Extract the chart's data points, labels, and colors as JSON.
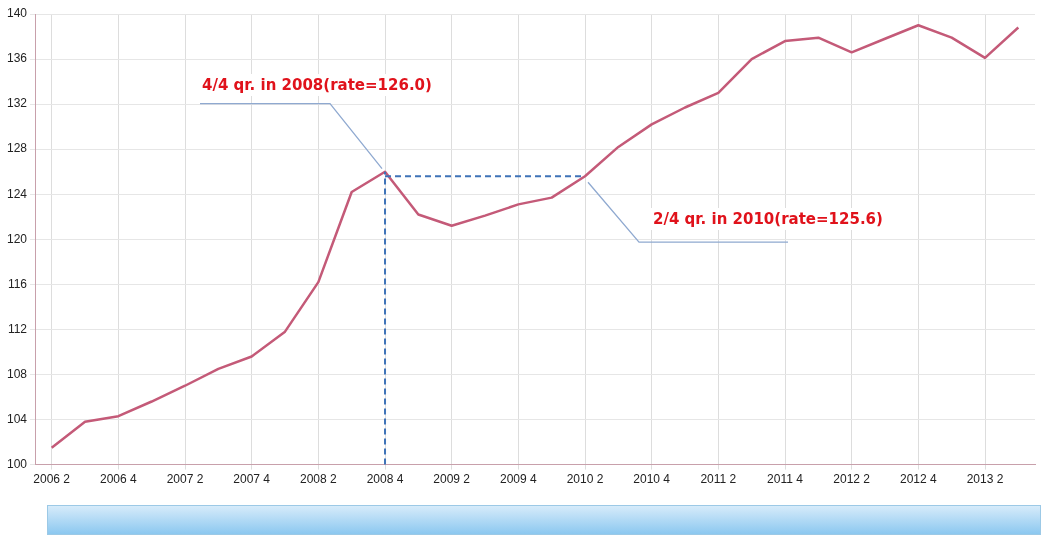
{
  "chart_data": {
    "type": "line",
    "categories": [
      "2006 2",
      null,
      "2006 4",
      null,
      "2007 2",
      null,
      "2007 4",
      null,
      "2008 2",
      null,
      "2008 4",
      null,
      "2009 2",
      null,
      "2009 4",
      null,
      "2010 2",
      null,
      "2010 4",
      null,
      "2011 2",
      null,
      "2011 4",
      null,
      "2012 2",
      null,
      "2012 4",
      null,
      "2013 2",
      null
    ],
    "series": [
      {
        "color": "#c45a78",
        "values": [
          101.5,
          103.8,
          104.3,
          105.6,
          107.0,
          108.5,
          109.6,
          111.8,
          116.2,
          124.2,
          126.0,
          122.2,
          121.2,
          122.1,
          123.1,
          123.7,
          125.6,
          128.2,
          130.2,
          131.7,
          133.0,
          136.0,
          137.6,
          137.9,
          136.6,
          137.8,
          139.0,
          137.9,
          136.1,
          138.8
        ]
      }
    ],
    "ylim": [
      100,
      140
    ],
    "yticks": [
      100,
      104,
      108,
      112,
      116,
      120,
      124,
      128,
      132,
      136,
      140
    ],
    "grid": true,
    "legend": false,
    "annotations": [
      {
        "text": "4/4 qr. in 2008(rate=126.0)",
        "x": "2008 4",
        "y": 126.0
      },
      {
        "text": "2/4 qr. in 2010(rate=125.6)",
        "x": "2010 2",
        "y": 125.6
      }
    ]
  }
}
